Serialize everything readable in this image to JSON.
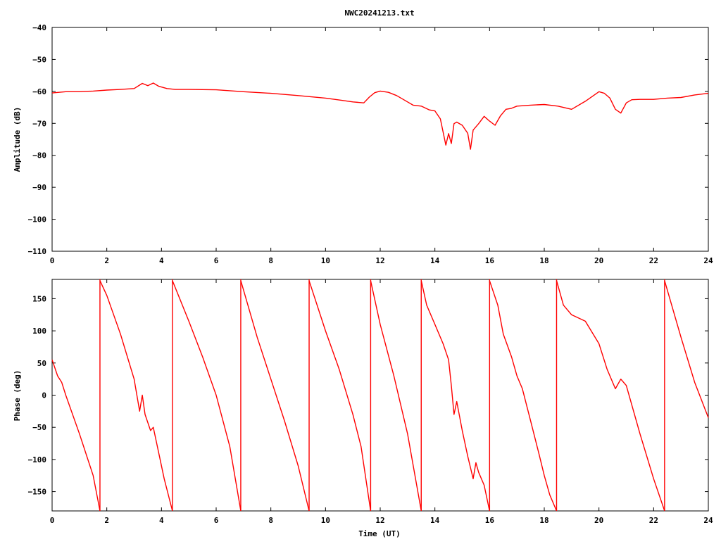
{
  "title": "NWC20241213.txt",
  "chart_data": [
    {
      "type": "line",
      "title": "NWC20241213.txt",
      "xlabel": "",
      "ylabel": "Amplitude (dB)",
      "xlim": [
        0,
        24
      ],
      "ylim": [
        -110,
        -40
      ],
      "xticks": [
        0,
        2,
        4,
        6,
        8,
        10,
        12,
        14,
        16,
        18,
        20,
        22,
        24
      ],
      "yticks": [
        -40,
        -50,
        -60,
        -70,
        -80,
        -90,
        -100,
        -110
      ],
      "grid": false,
      "color": "#ff0000",
      "series": [
        {
          "x": [
            0,
            0.5,
            1,
            1.5,
            2,
            2.5,
            3,
            3.3,
            3.5,
            3.7,
            3.9,
            4.2,
            4.5,
            5,
            6,
            7,
            8,
            9,
            10,
            10.5,
            11,
            11.4,
            11.6,
            11.8,
            12,
            12.3,
            12.6,
            12.8,
            13,
            13.2,
            13.5,
            13.8,
            14,
            14.2,
            14.4,
            14.5,
            14.6,
            14.7,
            14.8,
            15,
            15.2,
            15.3,
            15.4,
            15.6,
            15.8,
            16,
            16.2,
            16.4,
            16.6,
            16.8,
            17,
            17.5,
            18,
            18.5,
            19,
            19.5,
            20,
            20.2,
            20.4,
            20.6,
            20.8,
            21,
            21.2,
            21.5,
            22,
            22.5,
            23,
            23.5,
            24
          ],
          "y": [
            -60.5,
            -60.1,
            -60.1,
            -59.9,
            -59.6,
            -59.4,
            -59.1,
            -57.5,
            -58.2,
            -57.4,
            -58.4,
            -59.1,
            -59.4,
            -59.4,
            -59.5,
            -60.1,
            -60.6,
            -61.3,
            -62.1,
            -62.7,
            -63.3,
            -63.6,
            -61.8,
            -60.4,
            -59.9,
            -60.3,
            -61.3,
            -62.3,
            -63.3,
            -64.3,
            -64.6,
            -65.8,
            -66.1,
            -68.6,
            -76.8,
            -73.2,
            -76.3,
            -70.1,
            -69.6,
            -70.6,
            -73.1,
            -78.1,
            -72.1,
            -70.1,
            -67.8,
            -69.3,
            -70.6,
            -67.6,
            -65.6,
            -65.3,
            -64.6,
            -64.3,
            -64.1,
            -64.6,
            -65.6,
            -63.1,
            -60.1,
            -60.6,
            -62.1,
            -65.6,
            -66.8,
            -63.6,
            -62.6,
            -62.5,
            -62.5,
            -62.1,
            -61.9,
            -61.1,
            -60.6
          ]
        }
      ]
    },
    {
      "type": "line",
      "title": "",
      "xlabel": "Time (UT)",
      "ylabel": "Phase (deg)",
      "xlim": [
        0,
        24
      ],
      "ylim": [
        -180,
        180
      ],
      "xticks": [
        0,
        2,
        4,
        6,
        8,
        10,
        12,
        14,
        16,
        18,
        20,
        22,
        24
      ],
      "yticks": [
        150,
        100,
        50,
        0,
        -50,
        -100,
        -150
      ],
      "grid": false,
      "color": "#ff0000",
      "segments": [
        {
          "x": [
            0,
            0.2,
            0.35,
            0.5,
            1,
            1.5,
            1.75
          ],
          "y": [
            55,
            30,
            20,
            0,
            -60,
            -125,
            -180
          ]
        },
        {
          "x": [
            1.75,
            2,
            2.5,
            3,
            3.2,
            3.3,
            3.4,
            3.6,
            3.7,
            3.8,
            4.1,
            4.4
          ],
          "y": [
            178,
            155,
            95,
            25,
            -25,
            0,
            -30,
            -55,
            -50,
            -70,
            -130,
            -180
          ]
        },
        {
          "x": [
            4.4,
            5,
            5.5,
            6,
            6.5,
            6.9
          ],
          "y": [
            178,
            115,
            60,
            0,
            -80,
            -180
          ]
        },
        {
          "x": [
            6.9,
            7.5,
            8,
            8.5,
            9,
            9.4
          ],
          "y": [
            178,
            90,
            25,
            -40,
            -110,
            -180
          ]
        },
        {
          "x": [
            9.4,
            10,
            10.5,
            11,
            11.3,
            11.65
          ],
          "y": [
            178,
            100,
            40,
            -30,
            -80,
            -180
          ]
        },
        {
          "x": [
            11.65,
            12,
            12.5,
            13,
            13.5
          ],
          "y": [
            178,
            110,
            30,
            -60,
            -180
          ]
        },
        {
          "x": [
            13.5,
            13.7,
            14,
            14.3,
            14.5,
            14.6,
            14.7,
            14.8,
            15,
            15.2,
            15.4,
            15.5,
            15.6,
            15.8,
            16
          ],
          "y": [
            178,
            140,
            110,
            80,
            55,
            15,
            -30,
            -10,
            -55,
            -95,
            -130,
            -105,
            -120,
            -140,
            -180
          ]
        },
        {
          "x": [
            16,
            16.3,
            16.5,
            16.8,
            17,
            17.2,
            17.5,
            17.8,
            18,
            18.2,
            18.45
          ],
          "y": [
            178,
            140,
            95,
            60,
            30,
            10,
            -40,
            -90,
            -125,
            -155,
            -180
          ]
        },
        {
          "x": [
            18.45,
            18.7,
            19,
            19.5,
            20,
            20.3,
            20.6,
            20.8,
            21,
            21.5,
            22,
            22.4
          ],
          "y": [
            178,
            140,
            125,
            115,
            80,
            40,
            10,
            25,
            15,
            -60,
            -130,
            -180
          ]
        },
        {
          "x": [
            22.4,
            23,
            23.5,
            24
          ],
          "y": [
            178,
            90,
            20,
            -35
          ]
        }
      ]
    }
  ]
}
